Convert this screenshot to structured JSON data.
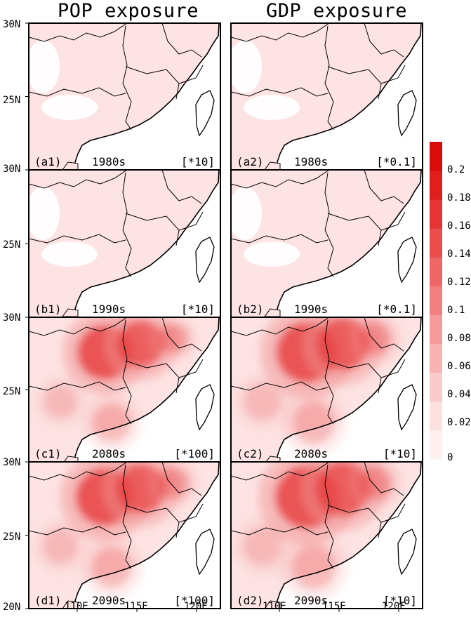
{
  "columns": [
    {
      "title": "POP exposure"
    },
    {
      "title": "GDP exposure"
    }
  ],
  "lat_labels": [
    "30N",
    "25N",
    "30N",
    "25N",
    "30N",
    "25N",
    "30N",
    "25N",
    "20N"
  ],
  "lon_labels": [
    "110E",
    "115E",
    "120E",
    "110E",
    "115E",
    "120E"
  ],
  "panels": [
    {
      "id": "a1",
      "tag": "(a1)",
      "decade": "1980s",
      "scale": "[*10]",
      "intensity": 0.0,
      "hotspot_north": 0.0,
      "hotspot_west": 0.0
    },
    {
      "id": "a2",
      "tag": "(a2)",
      "decade": "1980s",
      "scale": "[*0.1]",
      "intensity": 0.0,
      "hotspot_north": 0.0,
      "hotspot_west": 0.0
    },
    {
      "id": "b1",
      "tag": "(b1)",
      "decade": "1990s",
      "scale": "[*10]",
      "intensity": 0.0,
      "hotspot_north": 0.0,
      "hotspot_west": 0.0
    },
    {
      "id": "b2",
      "tag": "(b2)",
      "decade": "1990s",
      "scale": "[*0.1]",
      "intensity": 0.0,
      "hotspot_north": 0.0,
      "hotspot_west": 0.0
    },
    {
      "id": "c1",
      "tag": "(c1)",
      "decade": "2080s",
      "scale": "[*100]",
      "intensity": 1.0,
      "hotspot_north": 0.12,
      "hotspot_west": 0.13
    },
    {
      "id": "c2",
      "tag": "(c2)",
      "decade": "2080s",
      "scale": "[*10]",
      "intensity": 1.0,
      "hotspot_north": 0.2,
      "hotspot_west": 0.19
    },
    {
      "id": "d1",
      "tag": "(d1)",
      "decade": "2090s",
      "scale": "[*100]",
      "intensity": 1.0,
      "hotspot_north": 0.15,
      "hotspot_west": 0.17
    },
    {
      "id": "d2",
      "tag": "(d2)",
      "decade": "2090s",
      "scale": "[*10]",
      "intensity": 1.0,
      "hotspot_north": 0.22,
      "hotspot_west": 0.22
    }
  ],
  "colorbar": {
    "ticks": [
      "0.2",
      "0.18",
      "0.16",
      "0.14",
      "0.12",
      "0.1",
      "0.08",
      "0.06",
      "0.04",
      "0.02",
      "0"
    ],
    "colors": [
      "#fff0f0",
      "#fde0e0",
      "#fbcaca",
      "#f9b3b3",
      "#f69b9b",
      "#f38080",
      "#ef6666",
      "#eb4c4c",
      "#e63434",
      "#e01e1e",
      "#d90b0b"
    ]
  }
}
